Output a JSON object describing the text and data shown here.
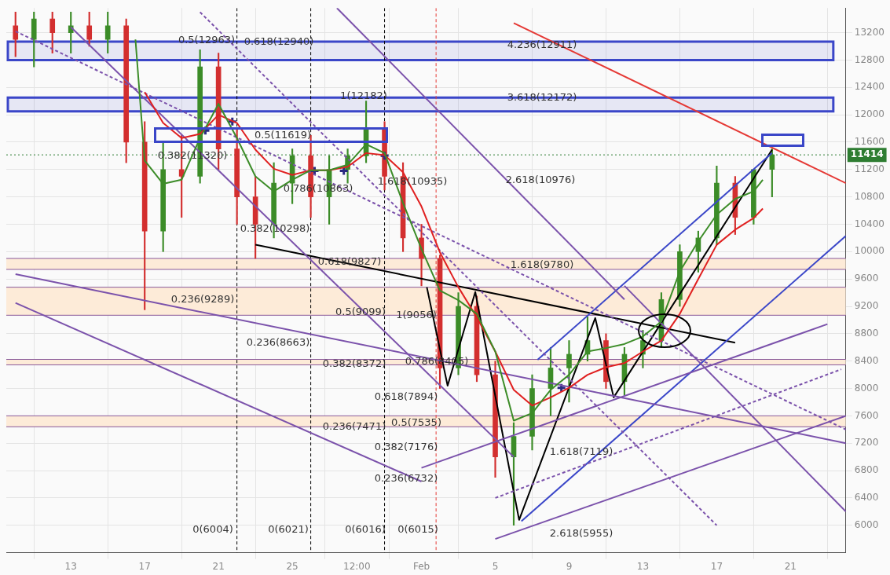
{
  "chart_data": {
    "type": "candlestick",
    "x": [
      "--01-10",
      "--01-11",
      "--01-12",
      "--01-13",
      "--01-14",
      "--01-15",
      "--01-16",
      "--01-17",
      "--01-18",
      "--01-19",
      "--01-20",
      "--01-21",
      "--01-22",
      "--01-23",
      "--01-24",
      "--01-25",
      "--01-26",
      "--01-27",
      "--01-28",
      "--01-29",
      "--01-30",
      "--01-31",
      "--02-01",
      "--02-02",
      "--02-03",
      "--02-04",
      "--02-05",
      "--02-06",
      "--02-07",
      "--02-08",
      "--02-09",
      "--02-10",
      "--02-11",
      "--02-12",
      "--02-13",
      "--02-14",
      "--02-15",
      "--02-16",
      "--02-17",
      "--02-18",
      "--02-19",
      "--02-20"
    ],
    "ohlc": [
      [
        13300,
        13500,
        12850,
        13100
      ],
      [
        13100,
        13500,
        12700,
        13400
      ],
      [
        13400,
        13500,
        12900,
        13200
      ],
      [
        13200,
        13500,
        12900,
        13300
      ],
      [
        13300,
        13500,
        13000,
        13100
      ],
      [
        13100,
        13500,
        12900,
        13300
      ],
      [
        13300,
        13400,
        11300,
        11600
      ],
      [
        11600,
        11900,
        9150,
        10300
      ],
      [
        10300,
        11600,
        10000,
        11200
      ],
      [
        11200,
        11700,
        10500,
        11100
      ],
      [
        11100,
        12950,
        11000,
        12700
      ],
      [
        12700,
        12900,
        11200,
        11500
      ],
      [
        11500,
        11800,
        10400,
        10800
      ],
      [
        10800,
        11100,
        9900,
        10400
      ],
      [
        10400,
        11300,
        10200,
        11000
      ],
      [
        11000,
        11500,
        10700,
        11400
      ],
      [
        11400,
        11700,
        10500,
        10800
      ],
      [
        10800,
        11400,
        10400,
        11200
      ],
      [
        11200,
        11500,
        11000,
        11400
      ],
      [
        11400,
        12200,
        11300,
        11800
      ],
      [
        11800,
        11900,
        10900,
        11100
      ],
      [
        11100,
        11300,
        10000,
        10200
      ],
      [
        10200,
        10400,
        9500,
        9900
      ],
      [
        9900,
        9950,
        8000,
        8300
      ],
      [
        8300,
        9400,
        8200,
        9200
      ],
      [
        9200,
        9350,
        8100,
        8200
      ],
      [
        8200,
        8400,
        6700,
        7000
      ],
      [
        7000,
        7500,
        6000,
        7300
      ],
      [
        7300,
        8200,
        7100,
        8000
      ],
      [
        8000,
        8600,
        7600,
        8300
      ],
      [
        8300,
        8700,
        7800,
        8500
      ],
      [
        8500,
        9050,
        8400,
        8700
      ],
      [
        8700,
        8800,
        8000,
        8100
      ],
      [
        8100,
        8600,
        7900,
        8500
      ],
      [
        8500,
        8850,
        8300,
        8700
      ],
      [
        8700,
        9400,
        8600,
        9300
      ],
      [
        9300,
        10100,
        9200,
        10000
      ],
      [
        10000,
        10300,
        9700,
        10200
      ],
      [
        10200,
        11250,
        10100,
        11000
      ],
      [
        11000,
        11100,
        10250,
        10500
      ],
      [
        10500,
        11200,
        10400,
        11200
      ],
      [
        11200,
        11500,
        10800,
        11414
      ]
    ],
    "series": [
      {
        "type": "line",
        "color": "#3c8c28",
        "marker": "none",
        "x": [
          "--01-16T12:00",
          "--01-17",
          "--01-18",
          "--01-19",
          "--01-20",
          "--01-21",
          "--01-22",
          "--01-23",
          "--01-24",
          "--01-25",
          "--01-26",
          "--01-27",
          "--01-28",
          "--01-29",
          "--01-30",
          "--01-31",
          "--02-01",
          "--02-02",
          "--02-03",
          "--02-04",
          "--02-05",
          "--02-06",
          "--02-07",
          "--02-08",
          "--02-09",
          "--02-10",
          "--02-11",
          "--02-12",
          "--02-13",
          "--02-14",
          "--02-15",
          "--02-16",
          "--02-17",
          "--02-18",
          "--02-19",
          "--02-19T12:00"
        ],
        "values": [
          13100,
          11330,
          10990,
          11050,
          11660,
          12160,
          11660,
          11100,
          10880,
          11050,
          11190,
          11190,
          11270,
          11570,
          11440,
          10710,
          10040,
          9430,
          9290,
          9090,
          8540,
          7530,
          7640,
          7980,
          8200,
          8540,
          8590,
          8650,
          8760,
          8980,
          9710,
          10150,
          10540,
          10770,
          10880,
          11050
        ]
      },
      {
        "type": "line",
        "color": "#e02020",
        "marker": "none",
        "x": [
          "--01-17",
          "--01-18",
          "--01-19",
          "--01-20",
          "--01-21",
          "--01-22",
          "--01-23",
          "--01-24",
          "--01-25",
          "--01-26",
          "--01-27",
          "--01-28",
          "--01-29",
          "--01-30",
          "--01-31",
          "--02-01",
          "--02-02",
          "--02-03",
          "--02-04",
          "--02-05",
          "--02-06",
          "--02-07",
          "--02-08",
          "--02-09",
          "--02-10",
          "--02-11",
          "--02-12",
          "--02-13",
          "--02-14",
          "--02-15",
          "--02-16",
          "--02-17",
          "--02-18",
          "--02-19",
          "--02-19T12:00"
        ],
        "values": [
          12330,
          11880,
          11660,
          11720,
          12000,
          11880,
          11490,
          11210,
          11120,
          11190,
          11190,
          11240,
          11440,
          11410,
          11160,
          10660,
          9990,
          9480,
          9040,
          8540,
          7980,
          7750,
          7870,
          8010,
          8200,
          8310,
          8370,
          8540,
          8700,
          9090,
          9600,
          10100,
          10320,
          10490,
          10630
        ]
      },
      {
        "type": "line",
        "color": "#7b52ab",
        "marker": "none",
        "x": [
          "--01-10",
          "--02-24"
        ],
        "values": [
          9670,
          7200
        ]
      },
      {
        "type": "line",
        "color": "#7b52ab",
        "marker": "none",
        "x": [
          "--01-10",
          "--02-01"
        ],
        "values": [
          9250,
          6640
        ]
      },
      {
        "type": "line",
        "color": "#7b52ab",
        "marker": "none",
        "x": [
          "--01-13",
          "--02-06"
        ],
        "values": [
          13280,
          7000
        ]
      },
      {
        "type": "line",
        "color": "#7b52ab",
        "marker": "none",
        "x": [
          "--01-27T10:00",
          "--02-12"
        ],
        "values": [
          13560,
          9300
        ]
      },
      {
        "type": "line",
        "color": "#7b52ab",
        "marker": "none",
        "x": [
          "--02-12",
          "--02-24"
        ],
        "values": [
          9500,
          6200
        ]
      },
      {
        "type": "line",
        "color": "#7b52ab",
        "marker": "none",
        "x": [
          "--02-05",
          "--02-24"
        ],
        "values": [
          5800,
          7600
        ]
      },
      {
        "type": "line",
        "color": "#7b52ab",
        "marker": "none",
        "x": [
          "--02-01",
          "--02-23"
        ],
        "values": [
          6840,
          8940
        ]
      },
      {
        "type": "line",
        "color": "#7b52ab",
        "marker": "none",
        "line_style": "dashed",
        "x": [
          "--01-10",
          "--02-24"
        ],
        "values": [
          13220,
          7400
        ]
      },
      {
        "type": "line",
        "color": "#7b52ab",
        "marker": "none",
        "line_style": "dashed",
        "x": [
          "--01-20",
          "--02-17"
        ],
        "values": [
          13500,
          6000
        ]
      },
      {
        "type": "line",
        "color": "#7b52ab",
        "marker": "none",
        "line_style": "dashed",
        "x": [
          "--02-05",
          "--02-23T18:00"
        ],
        "values": [
          6400,
          8280
        ]
      },
      {
        "type": "line",
        "color": "#3a46c8",
        "marker": "none",
        "x": [
          "--02-07T07:00",
          "--02-20"
        ],
        "values": [
          8420,
          11440
        ]
      },
      {
        "type": "line",
        "color": "#3a46c8",
        "marker": "none",
        "x": [
          "--02-06T10:00",
          "--02-24"
        ],
        "values": [
          6060,
          10230
        ]
      },
      {
        "type": "line",
        "color": "#000000",
        "marker": "none",
        "x": [
          "--01-23",
          "--02-18"
        ],
        "values": [
          10100,
          8670
        ]
      },
      {
        "type": "line",
        "color": "#000000",
        "marker": "none",
        "x": [
          "--02-01T07:00",
          "--02-02T10:00",
          "--02-03T22:00",
          "--02-06T07:00",
          "--02-10T10:00",
          "--02-11T10:00",
          "--02-20"
        ],
        "values": [
          9480,
          8040,
          9410,
          6080,
          9030,
          7870,
          11490
        ]
      },
      {
        "type": "line",
        "color": "#e53935",
        "marker": "none",
        "x": [
          "--02-06",
          "--02-24"
        ],
        "values": [
          13340,
          11000
        ]
      },
      {
        "type": "scatter",
        "color": "#2a2a80",
        "marker": "cross",
        "x": [
          "--01-20T07:00",
          "--01-21T18:00",
          "--01-26T05:00",
          "--01-27T19:00",
          "--01-30",
          "--02-08T14:00"
        ],
        "values": [
          11770,
          11900,
          11180,
          11180,
          11400,
          8010
        ]
      }
    ],
    "bands": [
      {
        "axis": "y",
        "from": 12800,
        "to": 13070,
        "color": "#3a46c8"
      },
      {
        "axis": "y",
        "from": 12050,
        "to": 12250,
        "color": "#3a46c8"
      },
      {
        "axis": "y",
        "from": 9740,
        "to": 9900,
        "color": "#fdebd8"
      },
      {
        "axis": "y",
        "from": 9070,
        "to": 9480,
        "color": "#fdebd8"
      },
      {
        "axis": "y",
        "from": 8345,
        "to": 8425,
        "color": "#fdebd8"
      },
      {
        "axis": "y",
        "from": 7440,
        "to": 7600,
        "color": "#fdebd8"
      }
    ],
    "ref_lines": [
      {
        "axis": "y",
        "value": 11414,
        "label": "11414",
        "color": "#2e7d32",
        "line_style": "dotted"
      },
      {
        "axis": "x",
        "value": "--01-22",
        "color": "#000000",
        "line_style": "dashed"
      },
      {
        "axis": "x",
        "value": "--01-26",
        "color": "#000000",
        "line_style": "dashed"
      },
      {
        "axis": "x",
        "value": "--01-30",
        "color": "#000000",
        "line_style": "dashed"
      },
      {
        "axis": "x",
        "value": "--02-01T19:00",
        "color": "#e53935",
        "line_style": "dashed"
      }
    ],
    "annotations": [
      "0.5(12963)",
      "0.618(12940)",
      "4.236(12911)",
      "1(12182)",
      "3.618(12172)",
      "0.5(11619)",
      "0.382(11320)",
      "1.618(10935)",
      "0.786(10863)",
      "2.618(10976)",
      "0.382(10298)",
      "0.618(9827)",
      "1.618(9780)",
      "0.236(9289)",
      "0.5(9099)",
      "1(9056)",
      "0.236(8663)",
      "0.382(8372)",
      "0.786(8405)",
      "0.618(7894)",
      "0.236(7471)",
      "0.5(7535)",
      "0.382(7176)",
      "0.236(6732)",
      "1.618(7119)",
      "2.618(5955)",
      "0(6004)",
      "0(6021)",
      "0(6016)",
      "0(6015)"
    ],
    "xlim": [
      "--01-09T12:00",
      "--02-24"
    ],
    "xticks": [
      {
        "value": "--01-13",
        "label": "13"
      },
      {
        "value": "--01-17",
        "label": "17"
      },
      {
        "value": "--01-21",
        "label": "21"
      },
      {
        "value": "--01-25",
        "label": "25"
      },
      {
        "value": "--01-28T12:00",
        "label": "12:00"
      },
      {
        "value": "--02-01",
        "label": "Feb"
      },
      {
        "value": "--02-05",
        "label": "5"
      },
      {
        "value": "--02-09",
        "label": "9"
      },
      {
        "value": "--02-13",
        "label": "13"
      },
      {
        "value": "--02-17",
        "label": "17"
      },
      {
        "value": "--02-21",
        "label": "21"
      }
    ],
    "ylim": [
      5600,
      13560
    ],
    "yticks": [
      6000,
      6400,
      6800,
      7200,
      7600,
      8000,
      8400,
      8800,
      9200,
      9600,
      10000,
      10400,
      10800,
      11200,
      11600,
      12000,
      12400,
      12800,
      13200
    ],
    "grid": true,
    "legend": false
  }
}
